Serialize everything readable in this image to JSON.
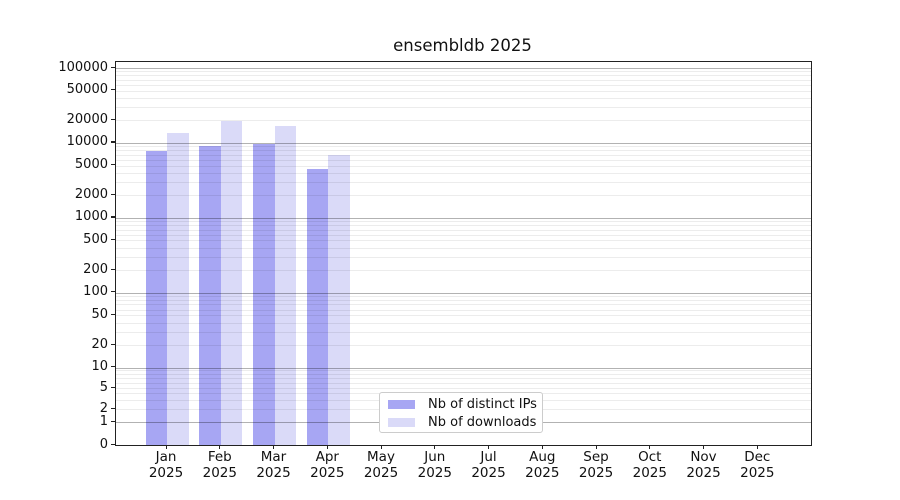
{
  "title": "ensembldb 2025",
  "chart_data": {
    "type": "bar",
    "title": "ensembldb 2025",
    "categories": [
      "Jan 2025",
      "Feb 2025",
      "Mar 2025",
      "Apr 2025",
      "May 2025",
      "Jun 2025",
      "Jul 2025",
      "Aug 2025",
      "Sep 2025",
      "Oct 2025",
      "Nov 2025",
      "Dec 2025"
    ],
    "series": [
      {
        "name": "Nb of distinct IPs",
        "color": "#a7a6f3",
        "values": [
          7800,
          9200,
          9700,
          4500,
          null,
          null,
          null,
          null,
          null,
          null,
          null,
          null
        ]
      },
      {
        "name": "Nb of downloads",
        "color": "#dadaf8",
        "values": [
          13600,
          19600,
          16800,
          7000,
          null,
          null,
          null,
          null,
          null,
          null,
          null,
          null
        ]
      }
    ],
    "y_axis": {
      "scale": "log-with-zero",
      "ticks": [
        100000,
        50000,
        20000,
        10000,
        5000,
        2000,
        1000,
        500,
        200,
        100,
        50,
        20,
        10,
        5,
        2,
        1,
        0
      ],
      "major_ticks": [
        100000,
        10000,
        1000,
        100,
        10,
        1
      ],
      "range_top": 100000,
      "range_bottom": 0
    },
    "xlabel": "",
    "ylabel": "",
    "legend_position": "lower center",
    "grid": {
      "horizontal": true,
      "minor": true
    }
  },
  "legend": {
    "items": [
      {
        "label": "Nb of distinct IPs",
        "color": "#a7a6f3"
      },
      {
        "label": "Nb of downloads",
        "color": "#dadaf8"
      }
    ]
  },
  "colors": {
    "background": "#ffffff",
    "bar_distinct_ips": "#a7a6f3",
    "bar_downloads": "#dadaf8",
    "major_grid": "#b0b0b0",
    "minor_grid": "#e9e9e9",
    "spine": "#222222",
    "text": "#111111",
    "legend_border": "#cccccc"
  }
}
